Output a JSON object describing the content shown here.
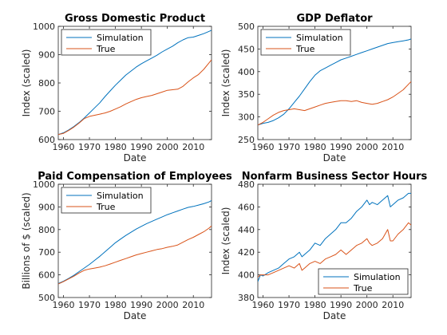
{
  "chart_data": [
    {
      "type": "line",
      "title": "Gross Domestic Product",
      "xlabel": "Date",
      "ylabel": "Index (scaled)",
      "xlim": [
        1958,
        2017
      ],
      "ylim": [
        600,
        1000
      ],
      "xticks": [
        1960,
        1970,
        1980,
        1990,
        2000,
        2010
      ],
      "yticks": [
        600,
        700,
        800,
        900,
        1000
      ],
      "grid": false,
      "legend_position": "top-left",
      "series": [
        {
          "name": "Simulation",
          "color": "#0072BD",
          "x": [
            1958,
            1960,
            1962,
            1964,
            1966,
            1968,
            1970,
            1972,
            1974,
            1976,
            1978,
            1980,
            1982,
            1984,
            1986,
            1988,
            1990,
            1992,
            1994,
            1996,
            1998,
            2000,
            2002,
            2004,
            2006,
            2008,
            2010,
            2012,
            2014,
            2016,
            2017
          ],
          "y": [
            618,
            624,
            634,
            646,
            660,
            676,
            694,
            712,
            730,
            752,
            772,
            792,
            810,
            828,
            842,
            856,
            868,
            878,
            888,
            898,
            910,
            920,
            930,
            942,
            952,
            960,
            962,
            968,
            974,
            982,
            986
          ]
        },
        {
          "name": "True",
          "color": "#D95319",
          "x": [
            1958,
            1960,
            1962,
            1964,
            1966,
            1968,
            1970,
            1972,
            1974,
            1976,
            1978,
            1980,
            1982,
            1984,
            1986,
            1988,
            1990,
            1992,
            1994,
            1996,
            1998,
            2000,
            2002,
            2004,
            2006,
            2008,
            2010,
            2012,
            2014,
            2016,
            2017
          ],
          "y": [
            618,
            622,
            632,
            644,
            658,
            674,
            682,
            686,
            690,
            694,
            700,
            708,
            716,
            726,
            734,
            742,
            748,
            752,
            756,
            762,
            768,
            774,
            776,
            778,
            788,
            804,
            818,
            830,
            848,
            870,
            882
          ]
        }
      ]
    },
    {
      "type": "line",
      "title": "GDP Deflator",
      "xlabel": "Date",
      "ylabel": "Index (scaled)",
      "xlim": [
        1958,
        2017
      ],
      "ylim": [
        250,
        500
      ],
      "xticks": [
        1960,
        1970,
        1980,
        1990,
        2000,
        2010
      ],
      "yticks": [
        250,
        300,
        350,
        400,
        450,
        500
      ],
      "grid": false,
      "legend_position": "top-left",
      "series": [
        {
          "name": "Simulation",
          "color": "#0072BD",
          "x": [
            1958,
            1960,
            1962,
            1964,
            1966,
            1968,
            1970,
            1972,
            1974,
            1976,
            1978,
            1980,
            1982,
            1984,
            1986,
            1988,
            1990,
            1992,
            1994,
            1996,
            1998,
            2000,
            2002,
            2004,
            2006,
            2008,
            2010,
            2012,
            2014,
            2016,
            2017
          ],
          "y": [
            282,
            286,
            288,
            292,
            298,
            306,
            318,
            332,
            346,
            362,
            378,
            392,
            402,
            408,
            414,
            420,
            426,
            430,
            434,
            438,
            442,
            446,
            450,
            454,
            458,
            462,
            464,
            466,
            468,
            470,
            472
          ]
        },
        {
          "name": "True",
          "color": "#D95319",
          "x": [
            1958,
            1960,
            1962,
            1964,
            1966,
            1968,
            1970,
            1972,
            1974,
            1976,
            1978,
            1980,
            1982,
            1984,
            1986,
            1988,
            1990,
            1992,
            1994,
            1996,
            1998,
            2000,
            2002,
            2004,
            2006,
            2008,
            2010,
            2012,
            2014,
            2016,
            2017
          ],
          "y": [
            282,
            288,
            296,
            304,
            310,
            314,
            316,
            318,
            316,
            314,
            318,
            322,
            326,
            330,
            332,
            334,
            336,
            336,
            334,
            336,
            332,
            330,
            328,
            330,
            334,
            338,
            344,
            352,
            360,
            372,
            378
          ]
        }
      ]
    },
    {
      "type": "line",
      "title": "Paid Compensation of Employees",
      "xlabel": "Date",
      "ylabel": "Billions of $ (scaled)",
      "xlim": [
        1958,
        2017
      ],
      "ylim": [
        500,
        1000
      ],
      "xticks": [
        1960,
        1970,
        1980,
        1990,
        2000,
        2010
      ],
      "yticks": [
        500,
        600,
        700,
        800,
        900,
        1000
      ],
      "grid": false,
      "legend_position": "top-left",
      "series": [
        {
          "name": "Simulation",
          "color": "#0072BD",
          "x": [
            1958,
            1960,
            1962,
            1964,
            1966,
            1968,
            1970,
            1972,
            1974,
            1976,
            1978,
            1980,
            1982,
            1984,
            1986,
            1988,
            1990,
            1992,
            1994,
            1996,
            1998,
            2000,
            2002,
            2004,
            2006,
            2008,
            2010,
            2012,
            2014,
            2016,
            2017
          ],
          "y": [
            562,
            572,
            584,
            598,
            614,
            630,
            646,
            664,
            682,
            702,
            722,
            742,
            758,
            774,
            788,
            802,
            814,
            826,
            836,
            846,
            856,
            866,
            874,
            882,
            890,
            898,
            902,
            908,
            914,
            922,
            928
          ]
        },
        {
          "name": "True",
          "color": "#D95319",
          "x": [
            1958,
            1960,
            1962,
            1964,
            1966,
            1968,
            1970,
            1972,
            1974,
            1976,
            1978,
            1980,
            1982,
            1984,
            1986,
            1988,
            1990,
            1992,
            1994,
            1996,
            1998,
            2000,
            2002,
            2004,
            2006,
            2008,
            2010,
            2012,
            2014,
            2016,
            2017
          ],
          "y": [
            560,
            570,
            582,
            594,
            608,
            620,
            626,
            630,
            634,
            640,
            648,
            656,
            664,
            672,
            680,
            688,
            694,
            700,
            706,
            712,
            716,
            722,
            726,
            732,
            744,
            756,
            766,
            778,
            790,
            806,
            816
          ]
        }
      ]
    },
    {
      "type": "line",
      "title": "Nonfarm Business Sector Hours",
      "xlabel": "Date",
      "ylabel": "Index (scaled)",
      "xlim": [
        1958,
        2017
      ],
      "ylim": [
        380,
        480
      ],
      "xticks": [
        1960,
        1970,
        1980,
        1990,
        2000,
        2010
      ],
      "yticks": [
        380,
        400,
        420,
        440,
        460,
        480
      ],
      "grid": false,
      "legend_position": "bottom-right",
      "series": [
        {
          "name": "Simulation",
          "color": "#0072BD",
          "x": [
            1958,
            1959,
            1960,
            1962,
            1964,
            1966,
            1968,
            1970,
            1972,
            1974,
            1975,
            1976,
            1978,
            1980,
            1982,
            1984,
            1986,
            1988,
            1990,
            1992,
            1994,
            1996,
            1998,
            2000,
            2001,
            2002,
            2004,
            2006,
            2008,
            2009,
            2010,
            2012,
            2014,
            2016,
            2017
          ],
          "y": [
            394,
            400,
            399,
            402,
            404,
            406,
            410,
            414,
            416,
            420,
            416,
            418,
            422,
            428,
            426,
            432,
            436,
            440,
            446,
            446,
            450,
            456,
            460,
            466,
            462,
            464,
            462,
            466,
            470,
            460,
            462,
            466,
            468,
            472,
            472
          ]
        },
        {
          "name": "True",
          "color": "#D95319",
          "x": [
            1958,
            1959,
            1960,
            1962,
            1964,
            1966,
            1968,
            1970,
            1972,
            1974,
            1975,
            1976,
            1978,
            1980,
            1982,
            1984,
            1986,
            1988,
            1990,
            1992,
            1994,
            1996,
            1998,
            2000,
            2001,
            2002,
            2004,
            2006,
            2008,
            2009,
            2010,
            2012,
            2014,
            2016,
            2017
          ],
          "y": [
            398,
            400,
            400,
            400,
            402,
            404,
            406,
            408,
            406,
            410,
            404,
            406,
            410,
            412,
            410,
            414,
            416,
            418,
            422,
            418,
            422,
            426,
            428,
            432,
            428,
            426,
            428,
            432,
            440,
            430,
            430,
            436,
            440,
            446,
            444
          ]
        }
      ]
    }
  ]
}
